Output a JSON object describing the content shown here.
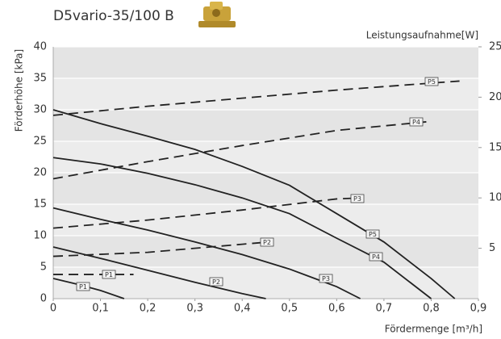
{
  "chart_data": {
    "type": "line",
    "title": "D5vario-35/100 B",
    "x_label": "Fördermenge [m³/h]",
    "y_label": "Förderhöhe [kPa]",
    "y2_label": "Leistungsaufnahme[W]",
    "xlim": [
      0,
      0.9
    ],
    "ylim": [
      0,
      40
    ],
    "y2lim": [
      0,
      25
    ],
    "xticks": [
      0,
      {
        "value": 0.1,
        "label": "0,1"
      },
      {
        "value": 0.2,
        "label": "0,2"
      },
      {
        "value": 0.3,
        "label": "0,3"
      },
      {
        "value": 0.4,
        "label": "0,4"
      },
      {
        "value": 0.5,
        "label": "0,5"
      },
      {
        "value": 0.6,
        "label": "0,6"
      },
      {
        "value": 0.7,
        "label": "0,7"
      },
      {
        "value": 0.8,
        "label": "0,8"
      },
      {
        "value": 0.9,
        "label": "0,9"
      }
    ],
    "yticks": [
      0,
      5,
      10,
      15,
      20,
      25,
      30,
      35,
      40
    ],
    "y2ticks": [
      5,
      10,
      15,
      20,
      25
    ],
    "grid": true,
    "series": [
      {
        "name": "P1",
        "color": "#222222",
        "axis": "y",
        "x": [
          0,
          0.05,
          0.1,
          0.15
        ],
        "values": [
          3.2,
          2.3,
          1.3,
          0
        ]
      },
      {
        "name": "P2",
        "color": "#222222",
        "axis": "y",
        "x": [
          0,
          0.1,
          0.2,
          0.3,
          0.4,
          0.45
        ],
        "values": [
          8.2,
          6.4,
          4.5,
          2.6,
          0.8,
          0
        ]
      },
      {
        "name": "P3",
        "color": "#222222",
        "axis": "y",
        "x": [
          0,
          0.1,
          0.2,
          0.3,
          0.4,
          0.5,
          0.6,
          0.65
        ],
        "values": [
          14.4,
          12.6,
          10.9,
          9,
          7,
          4.7,
          1.9,
          0
        ]
      },
      {
        "name": "P4",
        "color": "#222222",
        "axis": "y",
        "x": [
          0,
          0.1,
          0.2,
          0.3,
          0.4,
          0.5,
          0.6,
          0.7,
          0.8
        ],
        "values": [
          22.4,
          21.4,
          19.9,
          18.1,
          16,
          13.5,
          9.6,
          5.8,
          0
        ]
      },
      {
        "name": "P5",
        "color": "#222222",
        "axis": "y",
        "x": [
          0,
          0.1,
          0.2,
          0.3,
          0.4,
          0.5,
          0.6,
          0.7,
          0.8,
          0.85
        ],
        "values": [
          30,
          27.8,
          25.8,
          23.7,
          21,
          18,
          13.5,
          9,
          3.2,
          0
        ]
      },
      {
        "name": "P1",
        "color": "#222222",
        "axis": "y2",
        "dashed": true,
        "x": [
          0,
          0.17
        ],
        "values": [
          2.4,
          2.4
        ]
      },
      {
        "name": "P2",
        "color": "#222222",
        "axis": "y2",
        "dashed": true,
        "x": [
          0,
          0.2,
          0.4,
          0.45
        ],
        "values": [
          4.2,
          4.6,
          5.4,
          5.6
        ]
      },
      {
        "name": "P3",
        "color": "#222222",
        "axis": "y2",
        "dashed": true,
        "x": [
          0,
          0.2,
          0.4,
          0.6,
          0.65
        ],
        "values": [
          7.0,
          7.8,
          8.8,
          9.9,
          10.0
        ]
      },
      {
        "name": "P4",
        "color": "#222222",
        "axis": "y2",
        "dashed": true,
        "x": [
          0,
          0.2,
          0.4,
          0.6,
          0.8
        ],
        "values": [
          11.9,
          13.6,
          15.2,
          16.7,
          17.6
        ]
      },
      {
        "name": "P5",
        "color": "#222222",
        "axis": "y2",
        "dashed": true,
        "x": [
          0,
          0.2,
          0.4,
          0.6,
          0.8,
          0.86
        ],
        "values": [
          18.2,
          19.1,
          19.9,
          20.7,
          21.4,
          21.6
        ]
      }
    ]
  }
}
